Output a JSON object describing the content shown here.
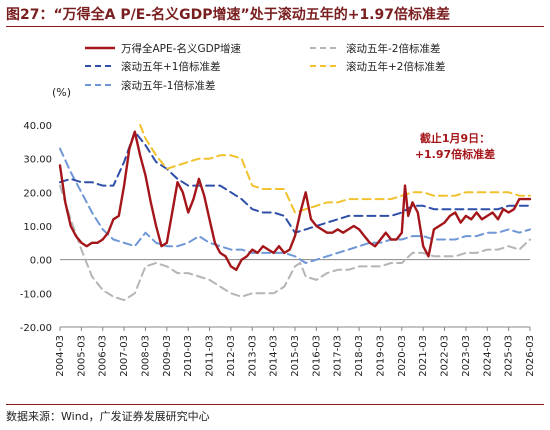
{
  "figure": {
    "title": "图27：“万得全A P/E-名义GDP增速”处于滚动五年的+1.97倍标准差",
    "source": "数据来源：Wind，广发证券发展研究中心"
  },
  "chart_data": {
    "type": "line",
    "unit_label": "(%)",
    "ylim": [
      -20,
      40
    ],
    "yticks": [
      "40.00",
      "30.00",
      "20.00",
      "10.00",
      "0.00",
      "-10.00",
      "-20.00"
    ],
    "xticks": [
      "2004-03",
      "2005-03",
      "2006-03",
      "2007-03",
      "2008-03",
      "2009-03",
      "2010-03",
      "2011-03",
      "2012-03",
      "2013-03",
      "2014-03",
      "2015-03",
      "2016-03",
      "2017-03",
      "2018-03",
      "2019-03",
      "2020-03",
      "2021-03",
      "2022-03",
      "2023-03",
      "2024-03",
      "2025-03",
      "2026-03"
    ],
    "xlim": [
      2004.0,
      2026.0
    ],
    "annotation": [
      "截止1月9日：",
      "+1.97倍标准差"
    ],
    "legend": [
      {
        "label": "万得全APE-名义GDP增速",
        "series": 0
      },
      {
        "label": "滚动五年-2倍标准差",
        "series": 1
      },
      {
        "label": "滚动五年+1倍标准差",
        "series": 2
      },
      {
        "label": "滚动五年+2倍标准差",
        "series": 3
      },
      {
        "label": "滚动五年-1倍标准差",
        "series": 4
      }
    ],
    "series": [
      {
        "name": "万得全APE-名义GDP增速",
        "color": "#a4161a",
        "dash": "",
        "width": 2.4,
        "points": [
          [
            2004.0,
            28
          ],
          [
            2004.25,
            17
          ],
          [
            2004.5,
            10
          ],
          [
            2004.75,
            7
          ],
          [
            2005.0,
            5
          ],
          [
            2005.25,
            4
          ],
          [
            2005.5,
            5
          ],
          [
            2005.75,
            5
          ],
          [
            2006.0,
            6
          ],
          [
            2006.25,
            8
          ],
          [
            2006.5,
            12
          ],
          [
            2006.75,
            13
          ],
          [
            2007.0,
            22
          ],
          [
            2007.25,
            33
          ],
          [
            2007.5,
            38
          ],
          [
            2007.75,
            31
          ],
          [
            2008.0,
            25
          ],
          [
            2008.25,
            17
          ],
          [
            2008.5,
            10
          ],
          [
            2008.75,
            4
          ],
          [
            2009.0,
            5
          ],
          [
            2009.25,
            14
          ],
          [
            2009.5,
            23
          ],
          [
            2009.75,
            20
          ],
          [
            2010.0,
            14
          ],
          [
            2010.25,
            18
          ],
          [
            2010.5,
            24
          ],
          [
            2010.75,
            19
          ],
          [
            2011.0,
            12
          ],
          [
            2011.25,
            5
          ],
          [
            2011.5,
            2
          ],
          [
            2011.75,
            1
          ],
          [
            2012.0,
            -2
          ],
          [
            2012.25,
            -3
          ],
          [
            2012.5,
            0
          ],
          [
            2012.75,
            1
          ],
          [
            2013.0,
            3
          ],
          [
            2013.25,
            2
          ],
          [
            2013.5,
            4
          ],
          [
            2013.75,
            3
          ],
          [
            2014.0,
            2
          ],
          [
            2014.25,
            4
          ],
          [
            2014.5,
            2
          ],
          [
            2014.75,
            3
          ],
          [
            2015.0,
            7
          ],
          [
            2015.25,
            14
          ],
          [
            2015.5,
            20
          ],
          [
            2015.75,
            12
          ],
          [
            2016.0,
            10
          ],
          [
            2016.25,
            9
          ],
          [
            2016.5,
            8
          ],
          [
            2016.75,
            8
          ],
          [
            2017.0,
            9
          ],
          [
            2017.25,
            8
          ],
          [
            2017.5,
            9
          ],
          [
            2017.75,
            10
          ],
          [
            2018.0,
            9
          ],
          [
            2018.25,
            7
          ],
          [
            2018.5,
            5
          ],
          [
            2018.75,
            4
          ],
          [
            2019.0,
            6
          ],
          [
            2019.25,
            8
          ],
          [
            2019.5,
            6
          ],
          [
            2019.75,
            6
          ],
          [
            2020.0,
            8
          ],
          [
            2020.15,
            22
          ],
          [
            2020.3,
            13
          ],
          [
            2020.5,
            17
          ],
          [
            2020.75,
            14
          ],
          [
            2021.0,
            4
          ],
          [
            2021.25,
            1
          ],
          [
            2021.5,
            9
          ],
          [
            2021.75,
            10
          ],
          [
            2022.0,
            11
          ],
          [
            2022.25,
            13
          ],
          [
            2022.5,
            14
          ],
          [
            2022.75,
            11
          ],
          [
            2023.0,
            13
          ],
          [
            2023.25,
            12
          ],
          [
            2023.5,
            14
          ],
          [
            2023.75,
            12
          ],
          [
            2024.0,
            13
          ],
          [
            2024.25,
            14
          ],
          [
            2024.5,
            12
          ],
          [
            2024.75,
            15
          ],
          [
            2025.0,
            14
          ],
          [
            2025.25,
            15
          ],
          [
            2025.5,
            18
          ],
          [
            2025.75,
            18
          ],
          [
            2026.0,
            18
          ]
        ]
      },
      {
        "name": "滚动五年-2倍标准差",
        "color": "#b5b5b5",
        "dash": "8,5",
        "width": 2,
        "points": [
          [
            2004.0,
            22
          ],
          [
            2004.5,
            12
          ],
          [
            2005.0,
            3
          ],
          [
            2005.5,
            -5
          ],
          [
            2006.0,
            -9
          ],
          [
            2006.5,
            -11
          ],
          [
            2007.0,
            -12
          ],
          [
            2007.5,
            -10
          ],
          [
            2008.0,
            -2
          ],
          [
            2008.5,
            -1
          ],
          [
            2009.0,
            -2
          ],
          [
            2009.5,
            -4
          ],
          [
            2010.0,
            -4
          ],
          [
            2010.5,
            -5
          ],
          [
            2011.0,
            -6
          ],
          [
            2011.5,
            -8
          ],
          [
            2012.0,
            -10
          ],
          [
            2012.5,
            -11
          ],
          [
            2013.0,
            -10
          ],
          [
            2013.5,
            -10
          ],
          [
            2014.0,
            -10
          ],
          [
            2014.5,
            -8
          ],
          [
            2015.0,
            -2
          ],
          [
            2015.25,
            -1
          ],
          [
            2015.5,
            -5
          ],
          [
            2016.0,
            -6
          ],
          [
            2016.5,
            -4
          ],
          [
            2017.0,
            -3
          ],
          [
            2017.5,
            -3
          ],
          [
            2018.0,
            -2
          ],
          [
            2018.5,
            -2
          ],
          [
            2019.0,
            -2
          ],
          [
            2019.5,
            -1
          ],
          [
            2020.0,
            -1
          ],
          [
            2020.5,
            2
          ],
          [
            2021.0,
            2
          ],
          [
            2021.5,
            1
          ],
          [
            2022.0,
            1
          ],
          [
            2022.5,
            1
          ],
          [
            2023.0,
            2
          ],
          [
            2023.5,
            2
          ],
          [
            2024.0,
            3
          ],
          [
            2024.5,
            3
          ],
          [
            2025.0,
            4
          ],
          [
            2025.5,
            3
          ],
          [
            2026.0,
            6
          ]
        ]
      },
      {
        "name": "滚动五年+1倍标准差",
        "color": "#2f4fa8",
        "dash": "8,5",
        "width": 2,
        "points": [
          [
            2004.0,
            23
          ],
          [
            2004.5,
            24
          ],
          [
            2005.0,
            23
          ],
          [
            2005.5,
            23
          ],
          [
            2006.0,
            22
          ],
          [
            2006.5,
            22
          ],
          [
            2007.0,
            29
          ],
          [
            2007.5,
            38
          ],
          [
            2008.0,
            34
          ],
          [
            2008.5,
            29
          ],
          [
            2009.0,
            27
          ],
          [
            2009.5,
            24
          ],
          [
            2010.0,
            22
          ],
          [
            2010.5,
            22
          ],
          [
            2011.0,
            22
          ],
          [
            2011.5,
            22
          ],
          [
            2012.0,
            20
          ],
          [
            2012.5,
            18
          ],
          [
            2013.0,
            15
          ],
          [
            2013.5,
            14
          ],
          [
            2014.0,
            14
          ],
          [
            2014.5,
            13
          ],
          [
            2015.0,
            8
          ],
          [
            2015.5,
            9
          ],
          [
            2016.0,
            10
          ],
          [
            2016.5,
            11
          ],
          [
            2017.0,
            12
          ],
          [
            2017.5,
            13
          ],
          [
            2018.0,
            13
          ],
          [
            2018.5,
            13
          ],
          [
            2019.0,
            13
          ],
          [
            2019.5,
            13
          ],
          [
            2020.0,
            14
          ],
          [
            2020.5,
            16
          ],
          [
            2021.0,
            16
          ],
          [
            2021.5,
            15
          ],
          [
            2022.0,
            15
          ],
          [
            2022.5,
            15
          ],
          [
            2023.0,
            15
          ],
          [
            2023.5,
            15
          ],
          [
            2024.0,
            15
          ],
          [
            2024.5,
            15
          ],
          [
            2025.0,
            16
          ],
          [
            2025.5,
            16
          ],
          [
            2026.0,
            16
          ]
        ]
      },
      {
        "name": "滚动五年+2倍标准差",
        "color": "#f2c12e",
        "dash": "8,5",
        "width": 2,
        "points": [
          [
            2007.75,
            40
          ],
          [
            2008.0,
            36
          ],
          [
            2008.5,
            31
          ],
          [
            2009.0,
            27
          ],
          [
            2009.5,
            28
          ],
          [
            2010.0,
            29
          ],
          [
            2010.5,
            30
          ],
          [
            2011.0,
            30
          ],
          [
            2011.5,
            31
          ],
          [
            2012.0,
            31
          ],
          [
            2012.5,
            30
          ],
          [
            2013.0,
            22
          ],
          [
            2013.5,
            21
          ],
          [
            2014.0,
            21
          ],
          [
            2014.5,
            21
          ],
          [
            2015.0,
            14
          ],
          [
            2015.5,
            15
          ],
          [
            2016.0,
            16
          ],
          [
            2016.5,
            17
          ],
          [
            2017.0,
            17
          ],
          [
            2017.5,
            18
          ],
          [
            2018.0,
            18
          ],
          [
            2018.5,
            18
          ],
          [
            2019.0,
            18
          ],
          [
            2019.5,
            18
          ],
          [
            2020.0,
            19
          ],
          [
            2020.5,
            20
          ],
          [
            2021.0,
            20
          ],
          [
            2021.5,
            19
          ],
          [
            2022.0,
            19
          ],
          [
            2022.5,
            19
          ],
          [
            2023.0,
            20
          ],
          [
            2023.5,
            20
          ],
          [
            2024.0,
            20
          ],
          [
            2024.5,
            20
          ],
          [
            2025.0,
            20
          ],
          [
            2025.5,
            19
          ],
          [
            2026.0,
            19
          ]
        ]
      },
      {
        "name": "滚动五年-1倍标准差",
        "color": "#6f97d6",
        "dash": "8,5",
        "width": 2,
        "points": [
          [
            2004.0,
            33
          ],
          [
            2004.5,
            26
          ],
          [
            2005.0,
            20
          ],
          [
            2005.5,
            14
          ],
          [
            2006.0,
            9
          ],
          [
            2006.5,
            6
          ],
          [
            2007.0,
            5
          ],
          [
            2007.5,
            4
          ],
          [
            2008.0,
            8
          ],
          [
            2008.5,
            5
          ],
          [
            2009.0,
            4
          ],
          [
            2009.5,
            4
          ],
          [
            2010.0,
            5
          ],
          [
            2010.5,
            7
          ],
          [
            2011.0,
            5
          ],
          [
            2011.5,
            4
          ],
          [
            2012.0,
            3
          ],
          [
            2012.5,
            3
          ],
          [
            2013.0,
            2
          ],
          [
            2013.5,
            2
          ],
          [
            2014.0,
            2
          ],
          [
            2014.5,
            2
          ],
          [
            2015.0,
            1
          ],
          [
            2015.5,
            -1
          ],
          [
            2016.0,
            0
          ],
          [
            2016.5,
            1
          ],
          [
            2017.0,
            2
          ],
          [
            2017.5,
            3
          ],
          [
            2018.0,
            4
          ],
          [
            2018.5,
            5
          ],
          [
            2019.0,
            5
          ],
          [
            2019.5,
            6
          ],
          [
            2020.0,
            6
          ],
          [
            2020.5,
            7
          ],
          [
            2021.0,
            7
          ],
          [
            2021.5,
            6
          ],
          [
            2022.0,
            6
          ],
          [
            2022.5,
            6
          ],
          [
            2023.0,
            7
          ],
          [
            2023.5,
            7
          ],
          [
            2024.0,
            8
          ],
          [
            2024.5,
            8
          ],
          [
            2025.0,
            9
          ],
          [
            2025.5,
            8
          ],
          [
            2026.0,
            9
          ]
        ]
      }
    ]
  }
}
